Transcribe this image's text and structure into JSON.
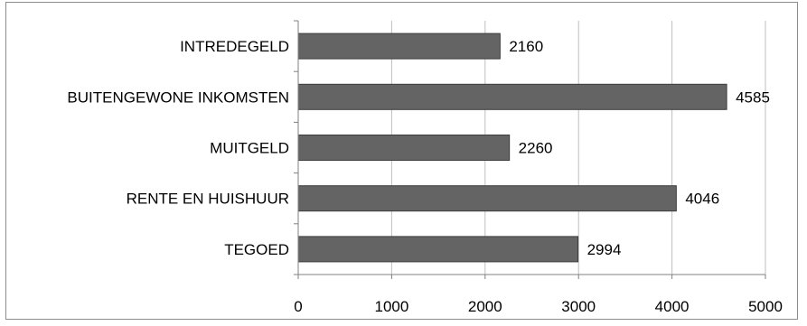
{
  "chart_data": {
    "type": "bar",
    "orientation": "horizontal",
    "title": "",
    "xlabel": "",
    "ylabel": "",
    "categories": [
      "INTREDEGELD",
      "BUITENGEWONE INKOMSTEN",
      "MUITGELD",
      "RENTE EN HUISHUUR",
      "TEGOED"
    ],
    "values": [
      2160,
      4585,
      2260,
      4046,
      2994
    ],
    "data_labels": [
      "2160",
      "4585",
      "2260",
      "4046",
      "2994"
    ],
    "xlim": [
      0,
      5000
    ],
    "x_ticks": [
      "0",
      "1000",
      "2000",
      "3000",
      "4000",
      "5000"
    ],
    "x_tick_values": [
      0,
      1000,
      2000,
      3000,
      4000,
      5000
    ],
    "grid": "vertical",
    "legend": "none",
    "colors": {
      "bar": "#646464",
      "bar_border": "#3c3c3c",
      "grid": "#bfbfbf",
      "axis": "#808080",
      "frame": "#8c8c8c"
    }
  }
}
